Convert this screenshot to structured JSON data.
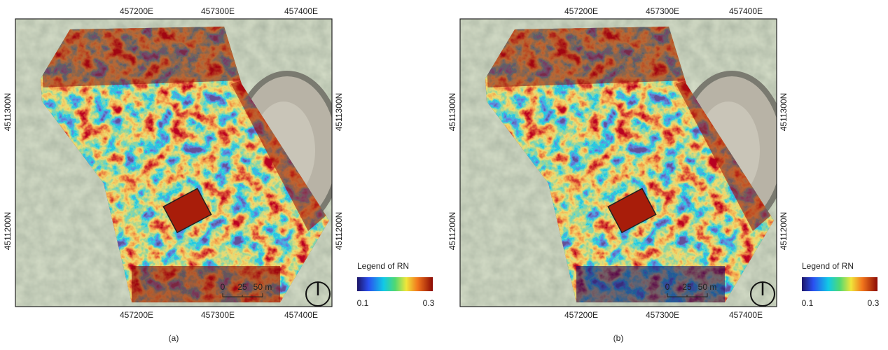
{
  "panels": [
    {
      "caption": "(a)",
      "x_labels_top": [
        "457200E",
        "457300E",
        "457400E"
      ],
      "x_labels_bottom": [
        "457200E",
        "457300E",
        "457400E"
      ],
      "y_labels_left": [
        "4511300N",
        "4511200N"
      ],
      "y_labels_right": [
        "4511300N",
        "4511200N"
      ],
      "legend": {
        "title": "Legend of RN",
        "min": "0.1",
        "max": "0.3"
      },
      "scale": {
        "labels": [
          "0",
          "25",
          "50 m"
        ]
      }
    },
    {
      "caption": "(b)",
      "x_labels_top": [
        "457200E",
        "457300E",
        "457400E"
      ],
      "x_labels_bottom": [
        "457200E",
        "457300E",
        "457400E"
      ],
      "y_labels_left": [
        "4511300N",
        "4511200N"
      ],
      "y_labels_right": [
        "4511300N",
        "4511200N"
      ],
      "legend": {
        "title": "Legend of RN",
        "min": "0.1",
        "max": "0.3"
      },
      "scale": {
        "labels": [
          "0",
          "25",
          "50 m"
        ]
      }
    }
  ]
}
